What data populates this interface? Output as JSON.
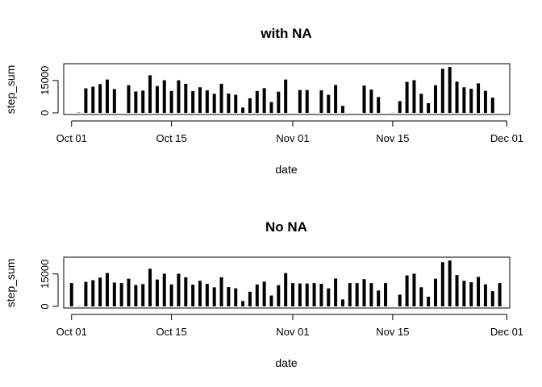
{
  "chart_data": [
    {
      "type": "bar",
      "title": "with NA",
      "xlabel": "date",
      "ylabel": "step_sum",
      "x_ticks": [
        {
          "label": "Oct 01",
          "day": 0
        },
        {
          "label": "Oct 15",
          "day": 14
        },
        {
          "label": "Nov 01",
          "day": 31
        },
        {
          "label": "Nov 15",
          "day": 45
        },
        {
          "label": "Dec 01",
          "day": 61
        }
      ],
      "y_ticks": [
        0,
        15000
      ],
      "ylim": [
        0,
        22000
      ],
      "xlim_days": [
        -1.1,
        61.4
      ],
      "x_start_label": "Oct 01",
      "values": [
        null,
        126,
        11352,
        12116,
        13294,
        15420,
        11015,
        null,
        12811,
        9900,
        10304,
        17382,
        12426,
        15098,
        10139,
        15084,
        13452,
        10056,
        11829,
        10395,
        8821,
        13460,
        8918,
        8355,
        2492,
        6778,
        10119,
        11458,
        5018,
        9819,
        15414,
        null,
        10600,
        10571,
        null,
        10439,
        8334,
        12883,
        3219,
        null,
        null,
        12608,
        10765,
        7336,
        null,
        41,
        5441,
        14339,
        15110,
        8841,
        4472,
        12787,
        20427,
        21194,
        14478,
        11834,
        11162,
        13646,
        10183,
        7047,
        null
      ],
      "grid": false
    },
    {
      "type": "bar",
      "title": "No NA",
      "xlabel": "date",
      "ylabel": "step_sum",
      "x_ticks": [
        {
          "label": "Oct 01",
          "day": 0
        },
        {
          "label": "Oct 15",
          "day": 14
        },
        {
          "label": "Nov 01",
          "day": 31
        },
        {
          "label": "Nov 15",
          "day": 45
        },
        {
          "label": "Dec 01",
          "day": 61
        }
      ],
      "y_ticks": [
        0,
        15000
      ],
      "ylim": [
        0,
        22000
      ],
      "xlim_days": [
        -1.1,
        61.4
      ],
      "x_start_label": "Oct 01",
      "values": [
        10766,
        126,
        11352,
        12116,
        13294,
        15420,
        11015,
        10766,
        12811,
        9900,
        10304,
        17382,
        12426,
        15098,
        10139,
        15084,
        13452,
        10056,
        11829,
        10395,
        8821,
        13460,
        8918,
        8355,
        2492,
        6778,
        10119,
        11458,
        5018,
        9819,
        15414,
        10766,
        10600,
        10571,
        10766,
        10439,
        8334,
        12883,
        3219,
        10766,
        10766,
        12608,
        10765,
        7336,
        10766,
        41,
        5441,
        14339,
        15110,
        8841,
        4472,
        12787,
        20427,
        21194,
        14478,
        11834,
        11162,
        13646,
        10183,
        7047,
        10766
      ],
      "grid": false
    }
  ]
}
